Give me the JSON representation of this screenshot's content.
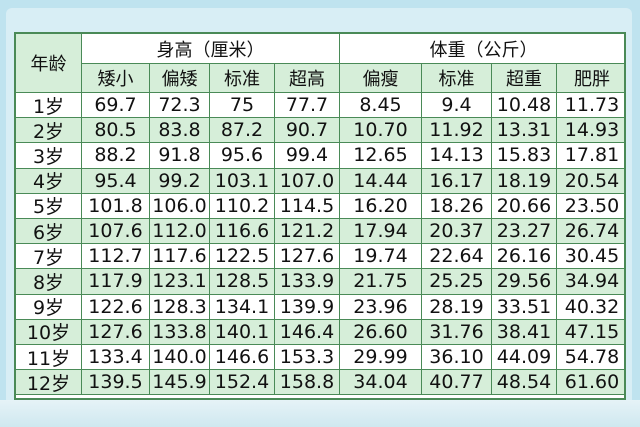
{
  "header": {
    "corner": "年龄",
    "groups": [
      {
        "title": "身高（厘米）",
        "columns": [
          "矮小",
          "偏矮",
          "标准",
          "超高"
        ]
      },
      {
        "title": "体重（公斤）",
        "columns": [
          "偏瘦",
          "标准",
          "超重",
          "肥胖"
        ]
      }
    ]
  },
  "table": {
    "rows": [
      [
        "1岁",
        "69.7",
        "72.3",
        "75",
        "77.7",
        "8.45",
        "9.4",
        "10.48",
        "11.73"
      ],
      [
        "2岁",
        "80.5",
        "83.8",
        "87.2",
        "90.7",
        "10.70",
        "11.92",
        "13.31",
        "14.93"
      ],
      [
        "3岁",
        "88.2",
        "91.8",
        "95.6",
        "99.4",
        "12.65",
        "14.13",
        "15.83",
        "17.81"
      ],
      [
        "4岁",
        "95.4",
        "99.2",
        "103.1",
        "107.0",
        "14.44",
        "16.17",
        "18.19",
        "20.54"
      ],
      [
        "5岁",
        "101.8",
        "106.0",
        "110.2",
        "114.5",
        "16.20",
        "18.26",
        "20.66",
        "23.50"
      ],
      [
        "6岁",
        "107.6",
        "112.0",
        "116.6",
        "121.2",
        "17.94",
        "20.37",
        "23.27",
        "26.74"
      ],
      [
        "7岁",
        "112.7",
        "117.6",
        "122.5",
        "127.6",
        "19.74",
        "22.64",
        "26.16",
        "30.45"
      ],
      [
        "8岁",
        "117.9",
        "123.1",
        "128.5",
        "133.9",
        "21.75",
        "25.25",
        "29.56",
        "34.94"
      ],
      [
        "9岁",
        "122.6",
        "128.3",
        "134.1",
        "139.9",
        "23.96",
        "28.19",
        "33.51",
        "40.32"
      ],
      [
        "10岁",
        "127.6",
        "133.8",
        "140.1",
        "146.4",
        "26.60",
        "31.76",
        "38.41",
        "47.15"
      ],
      [
        "11岁",
        "133.4",
        "140.0",
        "146.6",
        "153.3",
        "29.99",
        "36.10",
        "44.09",
        "54.78"
      ],
      [
        "12岁",
        "139.5",
        "145.9",
        "152.4",
        "158.8",
        "34.04",
        "40.77",
        "48.54",
        "61.60"
      ]
    ]
  }
}
